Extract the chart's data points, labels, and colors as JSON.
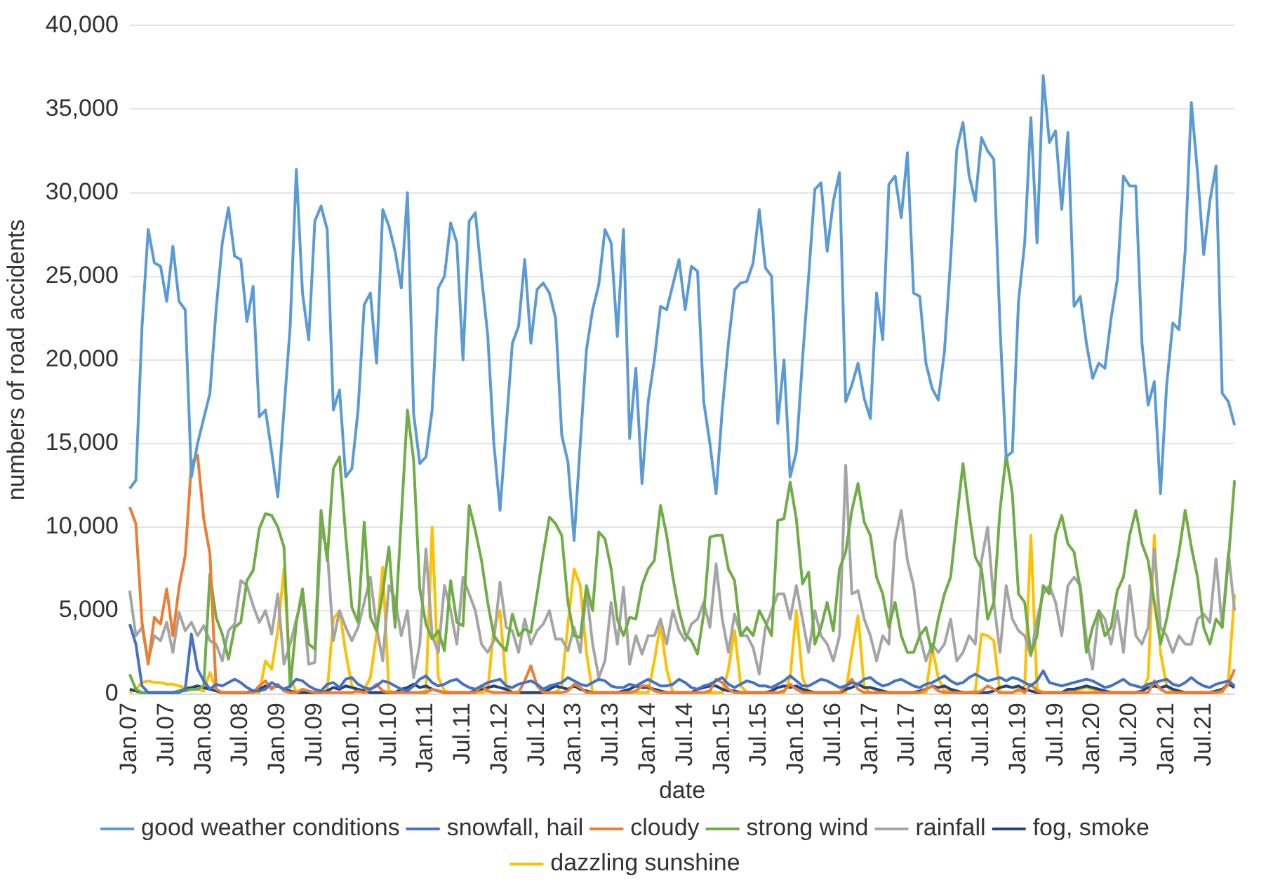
{
  "chart_data": {
    "type": "line",
    "xlabel": "date",
    "ylabel": "numbers of road accidents",
    "categories": [
      "Jan.07",
      null,
      null,
      null,
      null,
      null,
      "Jul.07",
      null,
      null,
      null,
      null,
      null,
      "Jan.08",
      null,
      null,
      null,
      null,
      null,
      "Jul.08",
      null,
      null,
      null,
      null,
      null,
      "Jan.09",
      null,
      null,
      null,
      null,
      null,
      "Jul.09",
      null,
      null,
      null,
      null,
      null,
      "Jan.10",
      null,
      null,
      null,
      null,
      null,
      "Jul.10",
      null,
      null,
      null,
      null,
      null,
      "Jan.11",
      null,
      null,
      null,
      null,
      null,
      "Jul.11",
      null,
      null,
      null,
      null,
      null,
      "Jan.12",
      null,
      null,
      null,
      null,
      null,
      "Jul.12",
      null,
      null,
      null,
      null,
      null,
      "Jan.13",
      null,
      null,
      null,
      null,
      null,
      "Jul.13",
      null,
      null,
      null,
      null,
      null,
      "Jan.14",
      null,
      null,
      null,
      null,
      null,
      "Jul.14",
      null,
      null,
      null,
      null,
      null,
      "Jan.15",
      null,
      null,
      null,
      null,
      null,
      "Jul.15",
      null,
      null,
      null,
      null,
      null,
      "Jan.16",
      null,
      null,
      null,
      null,
      null,
      "Jul.16",
      null,
      null,
      null,
      null,
      null,
      "Jan.17",
      null,
      null,
      null,
      null,
      null,
      "Jul.17",
      null,
      null,
      null,
      null,
      null,
      "Jan.18",
      null,
      null,
      null,
      null,
      null,
      "Jul.18",
      null,
      null,
      null,
      null,
      null,
      "Jan.19",
      null,
      null,
      null,
      null,
      null,
      "Jul.19",
      null,
      null,
      null,
      null,
      null,
      "Jan.20",
      null,
      null,
      null,
      null,
      null,
      "Jul.20",
      null,
      null,
      null,
      null,
      null,
      "Jan.21",
      null,
      null,
      null,
      null,
      null,
      "Jul.21",
      null,
      null,
      null,
      null,
      null
    ],
    "ylim": [
      0,
      40000
    ],
    "yticks": [
      {
        "value": 0,
        "label": "0"
      },
      {
        "value": 5000,
        "label": "5,000"
      },
      {
        "value": 10000,
        "label": "10,000"
      },
      {
        "value": 15000,
        "label": "15,000"
      },
      {
        "value": 20000,
        "label": "20,000"
      },
      {
        "value": 25000,
        "label": "25,000"
      },
      {
        "value": 30000,
        "label": "30,000"
      },
      {
        "value": 35000,
        "label": "35,000"
      },
      {
        "value": 40000,
        "label": "40,000"
      }
    ],
    "grid": "y",
    "legend": "bottom",
    "marker": "none",
    "line_style": "solid",
    "series": [
      {
        "name": "good weather conditions",
        "color": "#5b9bd5",
        "values": [
          12300,
          12800,
          22000,
          27800,
          25800,
          25600,
          23500,
          26800,
          23500,
          23000,
          13000,
          15000,
          16500,
          18000,
          23000,
          27000,
          29100,
          26200,
          26000,
          22300,
          24400,
          16600,
          17000,
          14500,
          11800,
          17000,
          22000,
          31400,
          24000,
          21200,
          28300,
          29200,
          27800,
          17000,
          18200,
          13000,
          13500,
          17000,
          23300,
          24000,
          19800,
          29000,
          28000,
          26500,
          24300,
          30000,
          16800,
          13800,
          14200,
          17000,
          24300,
          25000,
          28200,
          27000,
          20000,
          28300,
          28800,
          25000,
          21500,
          15000,
          11000,
          16000,
          21000,
          22000,
          26000,
          21000,
          24200,
          24600,
          24000,
          22500,
          15500,
          13900,
          9200,
          15000,
          20600,
          23000,
          24500,
          27800,
          27000,
          21400,
          27800,
          15300,
          19500,
          12600,
          17500,
          20000,
          23200,
          23000,
          24500,
          26000,
          23000,
          25600,
          25300,
          17500,
          15000,
          12000,
          17000,
          21000,
          24200,
          24600,
          24700,
          25800,
          29000,
          25500,
          25000,
          16200,
          20000,
          13000,
          14500,
          20000,
          25000,
          30200,
          30600,
          26500,
          29500,
          31200,
          17500,
          18500,
          19800,
          17700,
          16500,
          24000,
          21200,
          30500,
          31000,
          28500,
          32400,
          24000,
          23800,
          19800,
          18300,
          17600,
          20500,
          26000,
          32600,
          34200,
          31000,
          29500,
          33300,
          32500,
          32000,
          22000,
          14200,
          14500,
          23500,
          27000,
          34500,
          27000,
          37000,
          33000,
          33700,
          29000,
          33600,
          23200,
          23800,
          21000,
          18900,
          19800,
          19500,
          22500,
          24800,
          31000,
          30400,
          30400,
          21000,
          17300,
          18700,
          12000,
          18500,
          22200,
          21800,
          26500,
          35400,
          31200,
          26300,
          29500,
          31600,
          18000,
          17500,
          16100
        ]
      },
      {
        "name": "snowfall, hail",
        "color": "#4472c4",
        "values": [
          4200,
          3000,
          500,
          100,
          100,
          100,
          100,
          100,
          100,
          300,
          3600,
          1500,
          800,
          300,
          600,
          500,
          700,
          900,
          700,
          400,
          200,
          200,
          300,
          700,
          500,
          300,
          500,
          900,
          800,
          500,
          300,
          200,
          600,
          700,
          400,
          900,
          1000,
          600,
          400,
          300,
          500,
          800,
          700,
          500,
          300,
          200,
          500,
          900,
          1100,
          700,
          500,
          600,
          800,
          900,
          600,
          400,
          300,
          500,
          700,
          800,
          900,
          500,
          400,
          600,
          700,
          800,
          600,
          300,
          500,
          600,
          700,
          1000,
          800,
          600,
          500,
          700,
          900,
          800,
          500,
          400,
          400,
          600,
          500,
          700,
          900,
          700,
          500,
          500,
          600,
          900,
          700,
          400,
          300,
          500,
          600,
          800,
          1000,
          600,
          400,
          600,
          800,
          700,
          500,
          500,
          400,
          600,
          800,
          1100,
          800,
          500,
          500,
          700,
          900,
          800,
          600,
          400,
          500,
          700,
          600,
          900,
          1000,
          700,
          500,
          600,
          800,
          900,
          700,
          500,
          400,
          600,
          700,
          900,
          1100,
          800,
          600,
          700,
          1000,
          1200,
          1000,
          800,
          900,
          1000,
          800,
          1000,
          900,
          700,
          500,
          800,
          1400,
          700,
          600,
          500,
          600,
          700,
          800,
          900,
          800,
          600,
          400,
          500,
          700,
          900,
          600,
          500,
          400,
          600,
          700,
          800,
          900,
          600,
          500,
          700,
          1000,
          700,
          500,
          400,
          600,
          700,
          800,
          500
        ]
      },
      {
        "name": "cloudy",
        "color": "#ed7d31",
        "values": [
          11200,
          10200,
          4300,
          1800,
          4600,
          4200,
          6300,
          3500,
          6400,
          8300,
          13800,
          14300,
          10500,
          8400,
          300,
          100,
          100,
          100,
          100,
          100,
          100,
          500,
          800,
          300,
          600,
          200,
          100,
          100,
          300,
          200,
          100,
          100,
          100,
          100,
          100,
          100,
          100,
          200,
          100,
          300,
          600,
          200,
          100,
          100,
          100,
          100,
          100,
          100,
          100,
          300,
          200,
          100,
          100,
          100,
          100,
          100,
          100,
          500,
          200,
          100,
          100,
          100,
          100,
          100,
          800,
          1700,
          500,
          100,
          100,
          100,
          100,
          200,
          600,
          400,
          100,
          100,
          100,
          100,
          100,
          100,
          100,
          100,
          200,
          500,
          500,
          200,
          100,
          100,
          100,
          100,
          100,
          100,
          100,
          100,
          200,
          900,
          700,
          300,
          100,
          100,
          100,
          100,
          100,
          100,
          100,
          100,
          200,
          600,
          300,
          100,
          100,
          100,
          100,
          100,
          100,
          100,
          500,
          900,
          300,
          100,
          100,
          100,
          100,
          100,
          100,
          100,
          100,
          100,
          100,
          300,
          500,
          200,
          100,
          100,
          100,
          100,
          100,
          100,
          200,
          500,
          300,
          100,
          100,
          100,
          300,
          100,
          600,
          200,
          100,
          100,
          100,
          100,
          100,
          100,
          100,
          100,
          100,
          100,
          100,
          100,
          100,
          100,
          100,
          100,
          100,
          100,
          800,
          300,
          100,
          100,
          100,
          100,
          100,
          100,
          100,
          100,
          100,
          200,
          600,
          1500
        ]
      },
      {
        "name": "strong wind",
        "color": "#70ad47",
        "values": [
          1200,
          300,
          100,
          100,
          100,
          100,
          100,
          100,
          200,
          200,
          300,
          300,
          500,
          7200,
          4600,
          3600,
          2100,
          4000,
          4300,
          6800,
          7400,
          9900,
          10800,
          10700,
          10000,
          8800,
          400,
          4300,
          6300,
          3000,
          2700,
          11000,
          8000,
          13500,
          14200,
          9500,
          5200,
          4300,
          10300,
          4600,
          3800,
          6100,
          8800,
          4000,
          10500,
          17000,
          14000,
          6300,
          4200,
          3300,
          3800,
          2600,
          6800,
          4300,
          4100,
          11300,
          9800,
          8000,
          5500,
          3500,
          3000,
          2600,
          4800,
          3500,
          3900,
          3700,
          6000,
          8400,
          10600,
          10200,
          9500,
          5500,
          3500,
          3400,
          6500,
          5000,
          9700,
          9300,
          7500,
          4500,
          3500,
          4600,
          4500,
          6500,
          7500,
          8000,
          11300,
          9500,
          7000,
          5000,
          3600,
          3200,
          2400,
          4800,
          9400,
          9500,
          9500,
          7500,
          6800,
          3500,
          4000,
          3500,
          5000,
          4300,
          3500,
          10400,
          10500,
          12700,
          10500,
          6600,
          7300,
          3000,
          4000,
          5500,
          3800,
          7500,
          8500,
          11000,
          12600,
          10300,
          9500,
          7000,
          6000,
          4000,
          5500,
          3500,
          2500,
          2500,
          3500,
          4000,
          2500,
          4500,
          6000,
          7000,
          10500,
          13800,
          10800,
          8200,
          7500,
          4500,
          5500,
          11000,
          14300,
          12000,
          6000,
          5500,
          2400,
          3500,
          6500,
          6000,
          9500,
          10700,
          9000,
          8500,
          6300,
          2500,
          4000,
          5000,
          3500,
          4000,
          6200,
          7000,
          9500,
          11000,
          9000,
          8000,
          5500,
          3000,
          4500,
          6500,
          8500,
          11000,
          8800,
          7000,
          4000,
          3000,
          4500,
          4000,
          8000,
          12800
        ]
      },
      {
        "name": "rainfall",
        "color": "#a5a5a5",
        "values": [
          6200,
          3500,
          4000,
          2000,
          3500,
          3200,
          4300,
          2500,
          4900,
          3800,
          4300,
          3500,
          4100,
          3200,
          3000,
          2000,
          3800,
          4200,
          6800,
          6500,
          5300,
          4300,
          5000,
          3600,
          6000,
          1800,
          3000,
          4500,
          5800,
          1800,
          1900,
          9800,
          8700,
          3200,
          5000,
          4000,
          3200,
          4000,
          5500,
          7000,
          4000,
          2000,
          6500,
          5700,
          3500,
          5000,
          1000,
          3000,
          8700,
          3500,
          2500,
          6500,
          5000,
          3000,
          7000,
          6000,
          5000,
          3000,
          2500,
          3200,
          6700,
          4000,
          3800,
          2500,
          4500,
          3000,
          3800,
          4200,
          5000,
          3300,
          3300,
          2600,
          4000,
          2500,
          6200,
          3000,
          1000,
          2000,
          5500,
          3000,
          6400,
          1800,
          3500,
          2400,
          3500,
          3500,
          4500,
          3000,
          5000,
          3800,
          3200,
          4200,
          4500,
          5500,
          4000,
          7800,
          4500,
          2500,
          4800,
          3500,
          3500,
          2800,
          1200,
          4000,
          5000,
          6000,
          6000,
          4500,
          6500,
          4500,
          2500,
          5000,
          3500,
          3000,
          2000,
          3500,
          13700,
          6000,
          6200,
          4500,
          3500,
          2000,
          3500,
          3000,
          9200,
          11000,
          8000,
          6500,
          3500,
          2000,
          3000,
          2500,
          3000,
          4500,
          2000,
          2500,
          3500,
          3000,
          8000,
          10000,
          5500,
          2500,
          6500,
          4500,
          3800,
          3500,
          2300,
          4500,
          6000,
          6500,
          5500,
          3500,
          6500,
          7000,
          6500,
          3300,
          1500,
          5000,
          4500,
          3000,
          5000,
          2500,
          6500,
          3500,
          3000,
          4000,
          8700,
          4000,
          3500,
          2500,
          3500,
          3000,
          3000,
          4500,
          4800,
          4300,
          8100,
          4000,
          8500,
          5000
        ]
      },
      {
        "name": "fog, smoke",
        "color": "#264478",
        "values": [
          300,
          200,
          100,
          100,
          100,
          100,
          100,
          100,
          200,
          300,
          400,
          500,
          400,
          300,
          200,
          100,
          100,
          100,
          100,
          100,
          200,
          300,
          500,
          400,
          500,
          300,
          200,
          100,
          100,
          100,
          100,
          100,
          200,
          400,
          300,
          500,
          400,
          300,
          200,
          100,
          100,
          100,
          100,
          100,
          300,
          400,
          600,
          400,
          500,
          300,
          200,
          100,
          100,
          100,
          100,
          100,
          200,
          300,
          400,
          500,
          400,
          300,
          100,
          100,
          100,
          100,
          100,
          100,
          300,
          500,
          400,
          300,
          500,
          300,
          200,
          100,
          100,
          100,
          100,
          100,
          200,
          300,
          500,
          400,
          400,
          300,
          200,
          100,
          100,
          100,
          100,
          100,
          300,
          400,
          500,
          500,
          300,
          200,
          200,
          100,
          100,
          100,
          100,
          100,
          200,
          400,
          500,
          400,
          500,
          300,
          200,
          100,
          100,
          100,
          100,
          100,
          300,
          400,
          600,
          400,
          400,
          300,
          200,
          100,
          100,
          100,
          100,
          100,
          200,
          300,
          500,
          400,
          500,
          300,
          200,
          100,
          100,
          100,
          100,
          100,
          200,
          400,
          500,
          400,
          500,
          300,
          200,
          100,
          100,
          100,
          100,
          100,
          300,
          300,
          400,
          500,
          400,
          300,
          200,
          100,
          100,
          100,
          100,
          100,
          200,
          400,
          500,
          400,
          500,
          300,
          200,
          100,
          100,
          100,
          100,
          100,
          200,
          300,
          600,
          400
        ]
      },
      {
        "name": "dazzling sunshine",
        "color": "#ffc000",
        "values": [
          100,
          300,
          700,
          800,
          700,
          700,
          600,
          600,
          500,
          400,
          400,
          300,
          200,
          1300,
          300,
          100,
          100,
          100,
          100,
          100,
          100,
          100,
          2000,
          1500,
          3800,
          7500,
          1000,
          100,
          100,
          100,
          100,
          100,
          200,
          4500,
          5000,
          2500,
          500,
          100,
          300,
          1000,
          3600,
          7600,
          200,
          100,
          100,
          100,
          100,
          100,
          200,
          10000,
          1000,
          200,
          100,
          100,
          100,
          100,
          100,
          100,
          200,
          4000,
          5000,
          500,
          100,
          100,
          100,
          100,
          100,
          100,
          100,
          100,
          500,
          4200,
          7500,
          6500,
          2500,
          100,
          100,
          100,
          100,
          100,
          100,
          100,
          100,
          100,
          100,
          2000,
          4200,
          1500,
          100,
          100,
          100,
          100,
          100,
          100,
          100,
          100,
          100,
          1500,
          3800,
          500,
          100,
          100,
          100,
          100,
          100,
          100,
          100,
          1000,
          5000,
          1000,
          100,
          100,
          100,
          100,
          100,
          100,
          100,
          2500,
          4700,
          400,
          100,
          100,
          100,
          100,
          100,
          100,
          100,
          100,
          100,
          100,
          2800,
          1000,
          200,
          200,
          100,
          100,
          100,
          200,
          3600,
          3500,
          3200,
          100,
          100,
          100,
          200,
          500,
          9500,
          300,
          100,
          100,
          100,
          100,
          100,
          100,
          300,
          400,
          300,
          100,
          100,
          100,
          100,
          100,
          100,
          100,
          100,
          1000,
          9500,
          2500,
          500,
          100,
          100,
          100,
          100,
          100,
          100,
          100,
          100,
          100,
          800,
          6000
        ]
      }
    ]
  }
}
